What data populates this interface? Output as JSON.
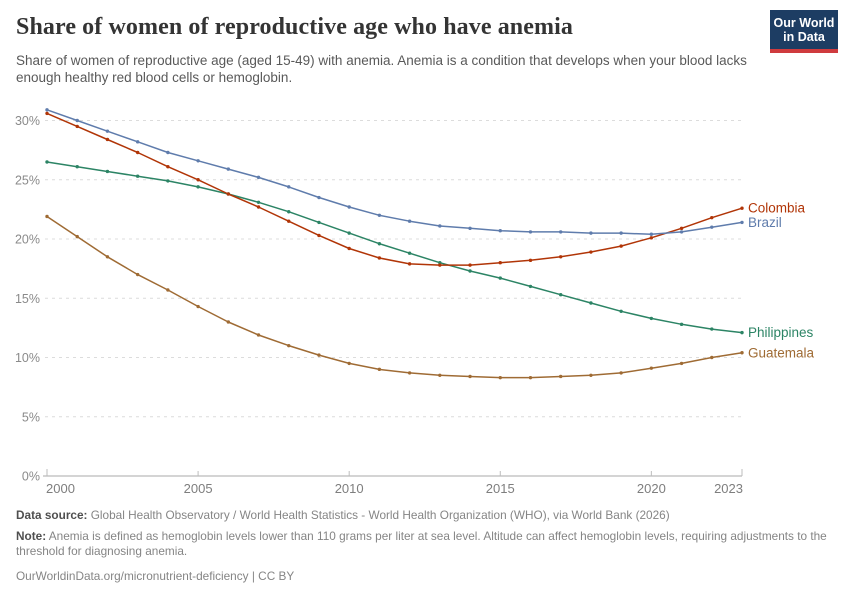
{
  "header": {
    "title": "Share of women of reproductive age who have anemia",
    "subtitle": "Share of women of reproductive age (aged 15-49) with anemia. Anemia is a condition that develops when your blood lacks enough healthy red blood cells or hemoglobin.",
    "logo": {
      "line1": "Our World",
      "line2": "in Data",
      "bg_color": "#1d3d63",
      "stripe_color": "#cf3b3e"
    }
  },
  "chart_data": {
    "type": "line",
    "x": [
      2000,
      2001,
      2002,
      2003,
      2004,
      2005,
      2006,
      2007,
      2008,
      2009,
      2010,
      2011,
      2012,
      2013,
      2014,
      2015,
      2016,
      2017,
      2018,
      2019,
      2020,
      2021,
      2022,
      2023
    ],
    "series": [
      {
        "name": "Philippines",
        "color": "#2c8465",
        "values": [
          26.5,
          26.1,
          25.7,
          25.3,
          24.9,
          24.4,
          23.8,
          23.1,
          22.3,
          21.4,
          20.5,
          19.6,
          18.8,
          18.0,
          17.3,
          16.7,
          16.0,
          15.3,
          14.6,
          13.9,
          13.3,
          12.8,
          12.4,
          12.1
        ]
      },
      {
        "name": "Guatemala",
        "color": "#9f6b34",
        "values": [
          21.9,
          20.2,
          18.5,
          17.0,
          15.7,
          14.3,
          13.0,
          11.9,
          11.0,
          10.2,
          9.5,
          9.0,
          8.7,
          8.5,
          8.4,
          8.3,
          8.3,
          8.4,
          8.5,
          8.7,
          9.1,
          9.5,
          10.0,
          10.4
        ]
      },
      {
        "name": "Colombia",
        "color": "#b13507",
        "values": [
          30.6,
          29.5,
          28.4,
          27.3,
          26.1,
          25.0,
          23.8,
          22.7,
          21.5,
          20.3,
          19.2,
          18.4,
          17.9,
          17.8,
          17.8,
          18.0,
          18.2,
          18.5,
          18.9,
          19.4,
          20.1,
          20.9,
          21.8,
          22.6
        ]
      },
      {
        "name": "Brazil",
        "color": "#5f7cac",
        "values": [
          30.9,
          30.0,
          29.1,
          28.2,
          27.3,
          26.6,
          25.9,
          25.2,
          24.4,
          23.5,
          22.7,
          22.0,
          21.5,
          21.1,
          20.9,
          20.7,
          20.6,
          20.6,
          20.5,
          20.5,
          20.4,
          20.6,
          21.0,
          21.4
        ]
      }
    ],
    "label_order_top_to_bottom": [
      "Colombia",
      "Brazil",
      "Philippines",
      "Guatemala"
    ],
    "ylim": [
      0,
      31
    ],
    "yticks": [
      0,
      5,
      10,
      15,
      20,
      25,
      30
    ],
    "ytick_suffix": "%",
    "xticks": [
      2000,
      2005,
      2010,
      2015,
      2020,
      2023
    ],
    "grid": "horizontal-dashed",
    "legend_position": "right-of-line-end",
    "title": "Share of women of reproductive age who have anemia",
    "xlabel": "",
    "ylabel": ""
  },
  "footer": {
    "data_source_label": "Data source:",
    "data_source_text": "Global Health Observatory / World Health Statistics - World Health Organization (WHO), via World Bank (2026)",
    "note_label": "Note:",
    "note_text": "Anemia is defined as hemoglobin levels lower than 110 grams per liter at sea level. Altitude can affect hemoglobin levels, requiring adjustments to the threshold for diagnosing anemia.",
    "link_text": "OurWorldinData.org/micronutrient-deficiency",
    "separator": " | ",
    "license": "CC BY"
  }
}
